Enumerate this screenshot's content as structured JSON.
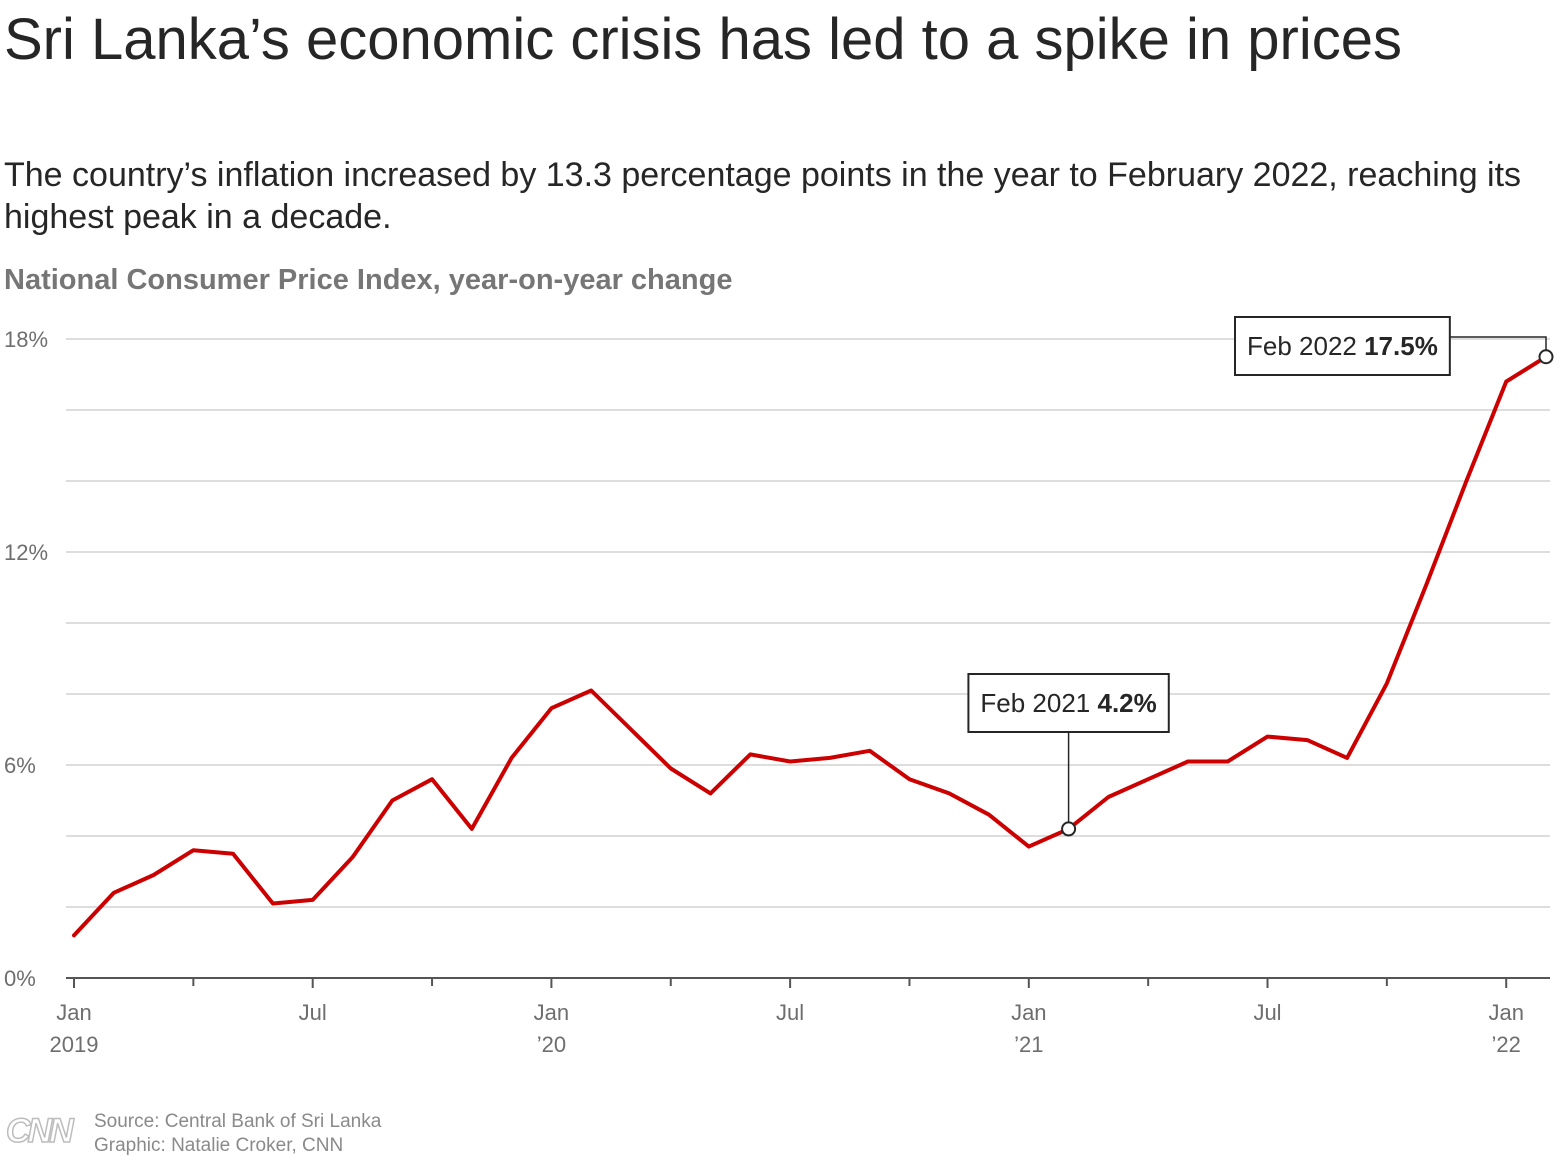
{
  "header": {
    "title": "Sri Lanka’s economic crisis has led to a spike in prices",
    "subtitle": "The country’s inflation increased by 13.3 percentage points in the year to February 2022, reaching its highest peak in a decade.",
    "chart_label": "National Consumer Price Index, year-on-year change"
  },
  "footer": {
    "logo": "CNN",
    "source": "Source: Central Bank of Sri Lanka",
    "credit": "Graphic: Natalie Croker, CNN"
  },
  "colors": {
    "line": "#cc0000",
    "grid": "#dddddd",
    "text": "#262626",
    "muted": "#767676"
  },
  "chart_data": {
    "type": "line",
    "x": [
      "2019-01",
      "2019-02",
      "2019-03",
      "2019-04",
      "2019-05",
      "2019-06",
      "2019-07",
      "2019-08",
      "2019-09",
      "2019-10",
      "2019-11",
      "2019-12",
      "2020-01",
      "2020-02",
      "2020-03",
      "2020-04",
      "2020-05",
      "2020-06",
      "2020-07",
      "2020-08",
      "2020-09",
      "2020-10",
      "2020-11",
      "2020-12",
      "2021-01",
      "2021-02",
      "2021-03",
      "2021-04",
      "2021-05",
      "2021-06",
      "2021-07",
      "2021-08",
      "2021-09",
      "2021-10",
      "2021-11",
      "2021-12",
      "2022-01",
      "2022-02"
    ],
    "series": [
      {
        "values": [
          1.2,
          2.4,
          2.9,
          3.6,
          3.5,
          2.1,
          2.2,
          3.4,
          5.0,
          5.6,
          4.2,
          6.2,
          7.6,
          8.1,
          7.0,
          5.9,
          5.2,
          6.3,
          6.1,
          6.2,
          6.4,
          5.6,
          5.2,
          4.6,
          3.7,
          4.2,
          5.1,
          5.6,
          6.1,
          6.1,
          6.8,
          6.7,
          6.2,
          8.3,
          11.1,
          14.0,
          16.8,
          17.5
        ]
      }
    ],
    "ylim": [
      0,
      18
    ],
    "yticks": [
      {
        "value": 0,
        "label": "0%"
      },
      {
        "value": 6,
        "label": "6%"
      },
      {
        "value": 12,
        "label": "12%"
      },
      {
        "value": 18,
        "label": "18%"
      }
    ],
    "ygrid": [
      2,
      4,
      6,
      8,
      10,
      12,
      14,
      16,
      18
    ],
    "xticks": [
      {
        "x": "2019-01",
        "label": "Jan",
        "sublabel": "2019"
      },
      {
        "x": "2019-07",
        "label": "Jul",
        "sublabel": ""
      },
      {
        "x": "2020-01",
        "label": "Jan",
        "sublabel": "’20"
      },
      {
        "x": "2020-07",
        "label": "Jul",
        "sublabel": ""
      },
      {
        "x": "2021-01",
        "label": "Jan",
        "sublabel": "’21"
      },
      {
        "x": "2021-07",
        "label": "Jul",
        "sublabel": ""
      },
      {
        "x": "2022-01",
        "label": "Jan",
        "sublabel": "’22"
      }
    ],
    "minor_xticks": [
      "2019-04",
      "2019-10",
      "2020-04",
      "2020-10",
      "2021-04",
      "2021-10"
    ],
    "grid": true,
    "annotations": [
      {
        "x": "2021-02",
        "label": "Feb 2021",
        "value_label": "4.2%",
        "placement": "above"
      },
      {
        "x": "2022-02",
        "label": "Feb 2022",
        "value_label": "17.5%",
        "placement": "left"
      }
    ]
  }
}
